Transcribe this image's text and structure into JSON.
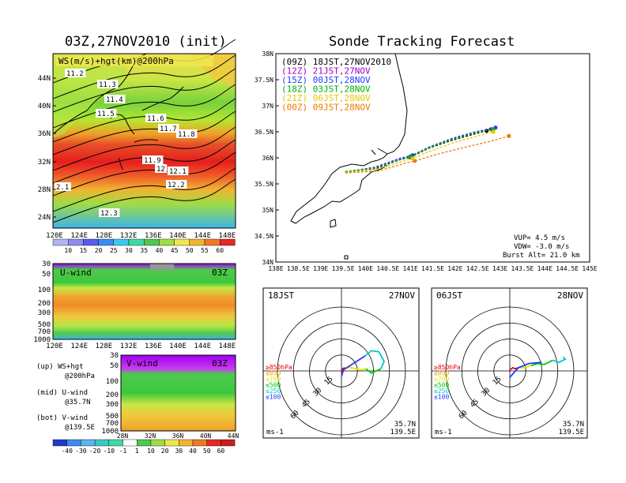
{
  "left_title": "03Z,27NOV2010 (init)",
  "right_title": "Sonde Tracking Forecast",
  "map_panel": {
    "label": "WS(m/s)+hgt(km)@200hPa",
    "lat_labels": [
      "44N",
      "40N",
      "36N",
      "32N",
      "28N",
      "24N"
    ],
    "lon_labels": [
      "120E",
      "124E",
      "128E",
      "132E",
      "136E",
      "140E",
      "144E",
      "148E"
    ],
    "contour_labels": [
      "11.2",
      "11.3",
      "11.4",
      "11.5",
      "11.6",
      "11.7",
      "11.8",
      "11.9",
      "12",
      "12.1",
      "12.2",
      "2.1",
      "12.3"
    ],
    "colorbar_labels": [
      "10",
      "15",
      "20",
      "25",
      "30",
      "35",
      "40",
      "45",
      "50",
      "55",
      "60"
    ]
  },
  "u_panel": {
    "label": "U-wind",
    "time": "03Z",
    "p_labels": [
      "30",
      "50",
      "100",
      "200",
      "300",
      "500",
      "700",
      "1000"
    ],
    "lon_labels": [
      "120E",
      "124E",
      "128E",
      "132E",
      "136E",
      "140E",
      "144E",
      "148E"
    ]
  },
  "v_panel": {
    "label": "V-wind",
    "time": "03Z",
    "p_labels": [
      "30",
      "50",
      "100",
      "200",
      "300",
      "500",
      "700",
      "1000"
    ],
    "lat_labels": [
      "28N",
      "32N",
      "36N",
      "40N",
      "44N"
    ]
  },
  "legend_text": {
    "up": "(up) WS+hgt",
    "up2": "@200hPa",
    "mid": "(mid) U-wind",
    "mid2": "@35.7N",
    "bot": "(bot) V-wind",
    "bot2": "@139.5E"
  },
  "bottom_colorbar_labels": [
    "-40",
    "-30",
    "-20",
    "-10",
    "-1",
    "1",
    "10",
    "20",
    "30",
    "40",
    "50",
    "60"
  ],
  "track_panel": {
    "lat_labels": [
      "38N",
      "37.5N",
      "37N",
      "36.5N",
      "36N",
      "35.5N",
      "35N",
      "34.5N",
      "34N"
    ],
    "lon_labels": [
      "138E",
      "138.5E",
      "139E",
      "139.5E",
      "140E",
      "140.5E",
      "141E",
      "141.5E",
      "142E",
      "142.5E",
      "143E",
      "143.5E",
      "144E",
      "144.5E",
      "145E"
    ],
    "legend": [
      {
        "text": "(09Z)  18JST,27NOV2010",
        "color": "#000000"
      },
      {
        "text": "(12Z)  21JST,27NOV",
        "color": "#a000c8"
      },
      {
        "text": "(15Z)  00JST,28NOV",
        "color": "#1e3cff"
      },
      {
        "text": "(18Z)  03JST,28NOV",
        "color": "#00b400"
      },
      {
        "text": "(21Z)  06JST,28NOV",
        "color": "#e6c800"
      },
      {
        "text": "(00Z)  09JST,28NOV",
        "color": "#f07800"
      }
    ],
    "params": [
      "VUP= 4.5 m/s",
      "VDW= -3.0 m/s",
      "Burst Alt= 21.0 km"
    ]
  },
  "hodo1": {
    "time": "18JST",
    "date": "27NOV",
    "rings": [
      "15",
      "30",
      "45",
      "60"
    ],
    "legend": [
      {
        "text": "≥850hPa",
        "color": "#e60000"
      },
      {
        "text": "≤850",
        "color": "#f0a000"
      },
      {
        "text": "≤700",
        "color": "#e6e600"
      },
      {
        "text": "≤500",
        "color": "#00c800"
      },
      {
        "text": "≤250",
        "color": "#00c8c8"
      },
      {
        "text": "≤100",
        "color": "#1e3cff"
      }
    ],
    "unit": "ms-1",
    "loc1": "35.7N",
    "loc2": "139.5E"
  },
  "hodo2": {
    "time": "06JST",
    "date": "28NOV",
    "rings": [
      "15",
      "30",
      "45",
      "60"
    ],
    "legend": [
      {
        "text": "≥850hPa",
        "color": "#e60000"
      },
      {
        "text": "≤850",
        "color": "#f0a000"
      },
      {
        "text": "≤700",
        "color": "#e6e600"
      },
      {
        "text": "≤500",
        "color": "#00c800"
      },
      {
        "text": "≤250",
        "color": "#00c8c8"
      },
      {
        "text": "≤100",
        "color": "#1e3cff"
      }
    ],
    "unit": "ms-1",
    "loc1": "35.7N",
    "loc2": "139.5E"
  },
  "chart_data": [
    {
      "type": "line",
      "title": "Sonde Tracking Forecast",
      "xlim": [
        138,
        145
      ],
      "ylim": [
        34,
        38
      ],
      "series": [
        {
          "name": "(09Z)  18JST,27NOV2010",
          "color": "#000000",
          "x": [
            139.55,
            140.2,
            140.75,
            141.0,
            141.4,
            141.9,
            142.4,
            142.7
          ],
          "y": [
            35.72,
            35.78,
            35.96,
            36.01,
            36.18,
            36.33,
            36.45,
            36.52
          ]
        },
        {
          "name": "(12Z)  21JST,27NOV",
          "color": "#a000c8",
          "x": [
            139.55,
            140.2,
            140.75,
            141.0,
            141.4,
            141.9,
            142.4,
            142.8
          ],
          "y": [
            35.73,
            35.8,
            35.98,
            36.03,
            36.2,
            36.35,
            36.48,
            36.55
          ]
        },
        {
          "name": "(15Z)  00JST,28NOV",
          "color": "#1e3cff",
          "x": [
            139.55,
            140.2,
            140.8,
            141.05,
            141.45,
            141.95,
            142.45,
            142.9
          ],
          "y": [
            35.73,
            35.82,
            36.0,
            36.05,
            36.22,
            36.38,
            36.5,
            36.58
          ]
        },
        {
          "name": "(18Z)  03JST,28NOV",
          "color": "#00b400",
          "x": [
            139.55,
            140.2,
            140.8,
            141.0,
            141.4,
            141.9,
            142.4,
            142.85
          ],
          "y": [
            35.74,
            35.8,
            35.97,
            36.02,
            36.19,
            36.35,
            36.47,
            36.55
          ]
        },
        {
          "name": "(21Z)  06JST,28NOV",
          "color": "#e6c800",
          "x": [
            139.55,
            140.25,
            140.85,
            141.05,
            141.5,
            142.0,
            142.5,
            142.85
          ],
          "y": [
            35.72,
            35.78,
            35.94,
            35.99,
            36.15,
            36.3,
            36.42,
            36.5
          ]
        },
        {
          "name": "(00Z)  09JST,28NOV",
          "color": "#f07800",
          "x": [
            139.55,
            140.3,
            140.9,
            141.1,
            141.6,
            142.2,
            142.8,
            143.2
          ],
          "y": [
            35.71,
            35.75,
            35.9,
            35.94,
            36.07,
            36.2,
            36.32,
            36.42
          ]
        }
      ]
    },
    {
      "type": "line",
      "title": "18JST 27NOV hodograph",
      "series": [
        {
          "name": "≥850hPa",
          "color": "#e60000",
          "u": [
            0,
            1,
            3
          ],
          "v": [
            -1,
            2,
            3
          ]
        },
        {
          "name": "≤700",
          "color": "#e6e600",
          "u": [
            3,
            9,
            18,
            23
          ],
          "v": [
            3,
            3,
            1,
            2
          ]
        },
        {
          "name": "≤500",
          "color": "#00c800",
          "u": [
            23,
            28,
            37
          ],
          "v": [
            2,
            -2,
            2
          ]
        },
        {
          "name": "≤250",
          "color": "#00c8c8",
          "u": [
            37,
            40,
            35,
            28,
            22
          ],
          "v": [
            2,
            9,
            18,
            19,
            14
          ]
        },
        {
          "name": "≤100",
          "color": "#1e3cff",
          "u": [
            22,
            8,
            2,
            0
          ],
          "v": [
            14,
            5,
            1,
            -5
          ]
        }
      ]
    },
    {
      "type": "line",
      "title": "06JST 28NOV hodograph",
      "series": [
        {
          "name": "≥850hPa",
          "color": "#e60000",
          "u": [
            0,
            3,
            5,
            8
          ],
          "v": [
            1,
            3,
            2,
            3
          ]
        },
        {
          "name": "≤700",
          "color": "#e6e600",
          "u": [
            8,
            14,
            20
          ],
          "v": [
            3,
            3,
            5
          ]
        },
        {
          "name": "≤500",
          "color": "#00c800",
          "u": [
            20,
            26,
            32,
            38,
            40
          ],
          "v": [
            5,
            7,
            6,
            9,
            10
          ]
        },
        {
          "name": "≤250",
          "color": "#00c8c8",
          "u": [
            40,
            46,
            52,
            50
          ],
          "v": [
            10,
            8,
            11,
            13
          ]
        },
        {
          "name": "≤100",
          "color": "#1e3cff",
          "u": [
            30,
            18,
            8,
            0
          ],
          "v": [
            8,
            7,
            3,
            -6
          ]
        }
      ]
    }
  ]
}
